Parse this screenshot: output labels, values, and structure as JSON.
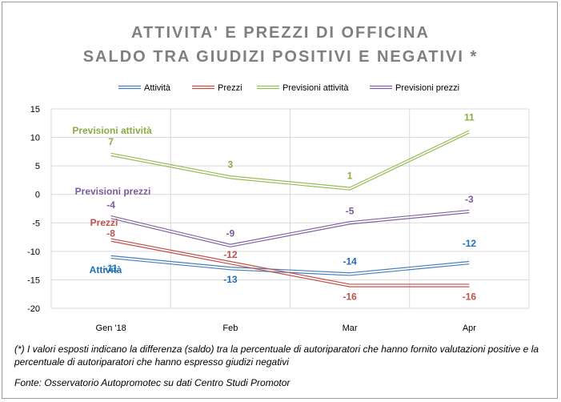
{
  "chart_data": {
    "type": "line",
    "title": "ATTIVITA' E PREZZI DI OFFICINA",
    "subtitle": "SALDO TRA GIUDIZI POSITIVI E NEGATIVI *",
    "categories": [
      "Gen '18",
      "Feb",
      "Mar",
      "Apr"
    ],
    "ylim": [
      -20,
      15
    ],
    "yticks": [
      15,
      10,
      5,
      0,
      -5,
      -10,
      -15,
      -20
    ],
    "grid": true,
    "legend_position": "top",
    "series": [
      {
        "name": "Attività",
        "values": [
          -11,
          -13,
          -14,
          -12
        ],
        "color": "#4a7ebb",
        "label_color": "#1f6fb5",
        "line_label": "Attività"
      },
      {
        "name": "Prezzi",
        "values": [
          -8,
          -12,
          -16,
          -16
        ],
        "color": "#c0504d",
        "label_color": "#c0504d",
        "line_label": "Prezzi"
      },
      {
        "name": "Previsioni attività",
        "values": [
          7,
          3,
          1,
          11
        ],
        "color": "#9bbb59",
        "label_color": "#8aac45",
        "line_label": "Previsioni attività"
      },
      {
        "name": "Previsioni prezzi",
        "values": [
          -4,
          -9,
          -5,
          -3
        ],
        "color": "#8064a2",
        "label_color": "#7a5c9e",
        "line_label": "Previsioni prezzi"
      }
    ]
  },
  "notes": {
    "footnote": "(*) I valori esposti indicano la differenza (saldo) tra la percentuale di autoriparatori che hanno fornito valutazioni positive e la percentuale di autoriparatori che hanno espresso giudizi negativi",
    "source": "Fonte: Osservatorio Autopromotec su dati Centro Studi Promotor"
  }
}
